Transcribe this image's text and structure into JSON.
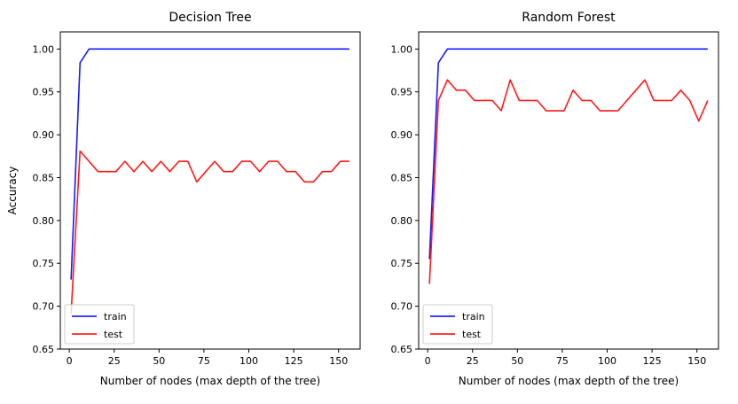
{
  "chart_data": [
    {
      "type": "line",
      "title": "Decision Tree",
      "xlabel": "Number of nodes (max depth of the tree)",
      "ylabel": "Accuracy",
      "xlim": [
        -5,
        162
      ],
      "ylim": [
        0.65,
        1.02
      ],
      "xticks": [
        0,
        25,
        50,
        75,
        100,
        125,
        150
      ],
      "yticks": [
        0.65,
        0.7,
        0.75,
        0.8,
        0.85,
        0.9,
        0.95,
        1.0
      ],
      "ytick_labels": [
        "0.65",
        "0.70",
        "0.75",
        "0.80",
        "0.85",
        "0.90",
        "0.95",
        "1.00"
      ],
      "legend_position": "lower-left",
      "x": [
        1,
        6,
        11,
        16,
        21,
        26,
        31,
        36,
        41,
        46,
        51,
        56,
        61,
        66,
        71,
        76,
        81,
        86,
        91,
        96,
        101,
        106,
        111,
        116,
        121,
        126,
        131,
        136,
        141,
        146,
        151,
        156
      ],
      "series": [
        {
          "name": "train",
          "color": "#0000ff",
          "values": [
            0.731,
            0.984,
            1.0,
            1.0,
            1.0,
            1.0,
            1.0,
            1.0,
            1.0,
            1.0,
            1.0,
            1.0,
            1.0,
            1.0,
            1.0,
            1.0,
            1.0,
            1.0,
            1.0,
            1.0,
            1.0,
            1.0,
            1.0,
            1.0,
            1.0,
            1.0,
            1.0,
            1.0,
            1.0,
            1.0,
            1.0,
            1.0
          ]
        },
        {
          "name": "test",
          "color": "#ff0000",
          "values": [
            0.691,
            0.881,
            0.869,
            0.857,
            0.857,
            0.857,
            0.869,
            0.857,
            0.869,
            0.857,
            0.869,
            0.857,
            0.869,
            0.869,
            0.845,
            0.857,
            0.869,
            0.857,
            0.857,
            0.869,
            0.869,
            0.857,
            0.869,
            0.869,
            0.857,
            0.857,
            0.845,
            0.845,
            0.857,
            0.857,
            0.869,
            0.869
          ]
        }
      ]
    },
    {
      "type": "line",
      "title": "Random Forest",
      "xlabel": "Number of nodes (max depth of the tree)",
      "ylabel": "",
      "xlim": [
        -5,
        162
      ],
      "ylim": [
        0.65,
        1.02
      ],
      "xticks": [
        0,
        25,
        50,
        75,
        100,
        125,
        150
      ],
      "yticks": [
        0.65,
        0.7,
        0.75,
        0.8,
        0.85,
        0.9,
        0.95,
        1.0
      ],
      "ytick_labels": [
        "0.65",
        "0.70",
        "0.75",
        "0.80",
        "0.85",
        "0.90",
        "0.95",
        "1.00"
      ],
      "legend_position": "lower-left",
      "x": [
        1,
        6,
        11,
        16,
        21,
        26,
        31,
        36,
        41,
        46,
        51,
        56,
        61,
        66,
        71,
        76,
        81,
        86,
        91,
        96,
        101,
        106,
        111,
        116,
        121,
        126,
        131,
        136,
        141,
        146,
        151,
        156
      ],
      "series": [
        {
          "name": "train",
          "color": "#0000ff",
          "values": [
            0.755,
            0.984,
            1.0,
            1.0,
            1.0,
            1.0,
            1.0,
            1.0,
            1.0,
            1.0,
            1.0,
            1.0,
            1.0,
            1.0,
            1.0,
            1.0,
            1.0,
            1.0,
            1.0,
            1.0,
            1.0,
            1.0,
            1.0,
            1.0,
            1.0,
            1.0,
            1.0,
            1.0,
            1.0,
            1.0,
            1.0,
            1.0
          ]
        },
        {
          "name": "test",
          "color": "#ff0000",
          "values": [
            0.726,
            0.94,
            0.964,
            0.952,
            0.952,
            0.94,
            0.94,
            0.94,
            0.928,
            0.964,
            0.94,
            0.94,
            0.94,
            0.928,
            0.928,
            0.928,
            0.952,
            0.94,
            0.94,
            0.928,
            0.928,
            0.928,
            0.94,
            0.952,
            0.964,
            0.94,
            0.94,
            0.94,
            0.952,
            0.94,
            0.916,
            0.94
          ]
        }
      ]
    }
  ]
}
